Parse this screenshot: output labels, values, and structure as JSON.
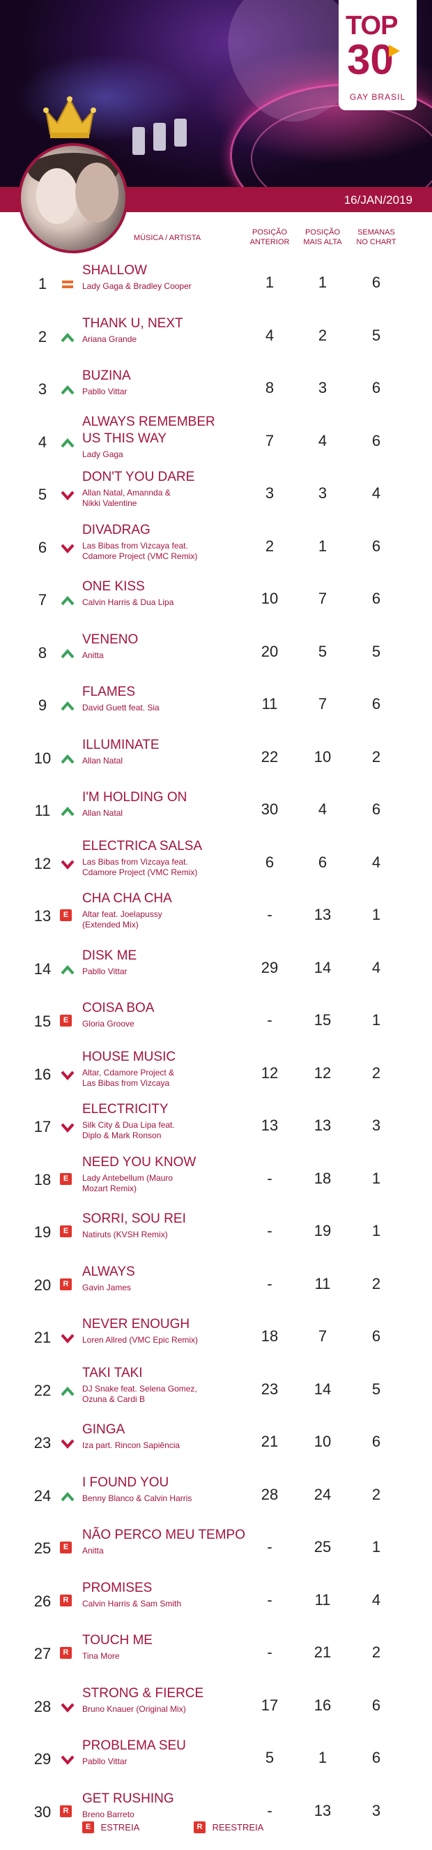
{
  "logo": {
    "top": "TOP",
    "number": "30",
    "subtitle": "GAY BRASIL"
  },
  "date": "16/JAN/2019",
  "headers": {
    "music": "MÚSICA / ARTISTA",
    "prev": [
      "POSIÇÃO",
      "ANTERIOR"
    ],
    "peak": [
      "POSIÇÃO",
      "MAIS ALTA"
    ],
    "weeks": [
      "SEMANAS",
      "NO CHART"
    ]
  },
  "colors": {
    "accent": "#a3133f",
    "up": "#3aa25b",
    "down": "#c0163f",
    "badge": "#e0342d"
  },
  "rows": [
    {
      "rank": "1",
      "trend": "same",
      "title": [
        "SHALLOW"
      ],
      "artist": [
        "Lady Gaga & Bradley Cooper"
      ],
      "prev": "1",
      "peak": "1",
      "weeks": "6"
    },
    {
      "rank": "2",
      "trend": "up",
      "title": [
        "THANK U, NEXT"
      ],
      "artist": [
        "Ariana Grande"
      ],
      "prev": "4",
      "peak": "2",
      "weeks": "5"
    },
    {
      "rank": "3",
      "trend": "up",
      "title": [
        "BUZINA"
      ],
      "artist": [
        "Pabllo Vittar"
      ],
      "prev": "8",
      "peak": "3",
      "weeks": "6"
    },
    {
      "rank": "4",
      "trend": "up",
      "title": [
        "ALWAYS REMEMBER",
        "US THIS WAY"
      ],
      "artist": [
        "Lady Gaga"
      ],
      "prev": "7",
      "peak": "4",
      "weeks": "6"
    },
    {
      "rank": "5",
      "trend": "down",
      "title": [
        "DON'T YOU DARE"
      ],
      "artist": [
        "Allan Natal, Amannda &",
        "Nikki Valentine"
      ],
      "prev": "3",
      "peak": "3",
      "weeks": "4"
    },
    {
      "rank": "6",
      "trend": "down",
      "title": [
        "DIVADRAG"
      ],
      "artist": [
        "Las Bibas from Vizcaya feat.",
        "Cdamore Project (VMC Remix)"
      ],
      "prev": "2",
      "peak": "1",
      "weeks": "6"
    },
    {
      "rank": "7",
      "trend": "up",
      "title": [
        "ONE KISS"
      ],
      "artist": [
        "Calvin Harris & Dua Lipa"
      ],
      "prev": "10",
      "peak": "7",
      "weeks": "6"
    },
    {
      "rank": "8",
      "trend": "up",
      "title": [
        "VENENO"
      ],
      "artist": [
        "Anitta"
      ],
      "prev": "20",
      "peak": "5",
      "weeks": "5"
    },
    {
      "rank": "9",
      "trend": "up",
      "title": [
        "FLAMES"
      ],
      "artist": [
        "David Guett feat. Sia"
      ],
      "prev": "11",
      "peak": "7",
      "weeks": "6"
    },
    {
      "rank": "10",
      "trend": "up",
      "title": [
        "ILLUMINATE"
      ],
      "artist": [
        "Allan Natal"
      ],
      "prev": "22",
      "peak": "10",
      "weeks": "2"
    },
    {
      "rank": "11",
      "trend": "up",
      "title": [
        "I'M HOLDING ON"
      ],
      "artist": [
        "Allan Natal"
      ],
      "prev": "30",
      "peak": "4",
      "weeks": "6"
    },
    {
      "rank": "12",
      "trend": "down",
      "title": [
        "ELECTRICA SALSA"
      ],
      "artist": [
        "Las Bibas from Vizcaya feat.",
        "Cdamore Project (VMC Remix)"
      ],
      "prev": "6",
      "peak": "6",
      "weeks": "4"
    },
    {
      "rank": "13",
      "trend": "E",
      "title": [
        "CHA CHA CHA"
      ],
      "artist": [
        "Altar feat. Joelapussy",
        "(Extended Mix)"
      ],
      "prev": "-",
      "peak": "13",
      "weeks": "1"
    },
    {
      "rank": "14",
      "trend": "up",
      "title": [
        "DISK ME"
      ],
      "artist": [
        "Pabllo Vittar"
      ],
      "prev": "29",
      "peak": "14",
      "weeks": "4"
    },
    {
      "rank": "15",
      "trend": "E",
      "title": [
        "COISA BOA"
      ],
      "artist": [
        "Gloria Groove"
      ],
      "prev": "-",
      "peak": "15",
      "weeks": "1"
    },
    {
      "rank": "16",
      "trend": "down",
      "title": [
        "HOUSE MUSIC"
      ],
      "artist": [
        "Altar, Cdamore Project &",
        "Las Bibas from Vizcaya"
      ],
      "prev": "12",
      "peak": "12",
      "weeks": "2"
    },
    {
      "rank": "17",
      "trend": "down",
      "title": [
        "ELECTRICITY"
      ],
      "artist": [
        "Silk City & Dua Lipa feat.",
        "Diplo & Mark Ronson"
      ],
      "prev": "13",
      "peak": "13",
      "weeks": "3"
    },
    {
      "rank": "18",
      "trend": "E",
      "title": [
        "NEED YOU KNOW"
      ],
      "artist": [
        "Lady Antebellum (Mauro",
        "Mozart Remix)"
      ],
      "prev": "-",
      "peak": "18",
      "weeks": "1"
    },
    {
      "rank": "19",
      "trend": "E",
      "title": [
        "SORRI, SOU REI"
      ],
      "artist": [
        "Natiruts (KVSH Remix)"
      ],
      "prev": "-",
      "peak": "19",
      "weeks": "1"
    },
    {
      "rank": "20",
      "trend": "R",
      "title": [
        "ALWAYS"
      ],
      "artist": [
        "Gavin James"
      ],
      "prev": "-",
      "peak": "11",
      "weeks": "2"
    },
    {
      "rank": "21",
      "trend": "down",
      "title": [
        "NEVER ENOUGH"
      ],
      "artist": [
        "Loren Allred (VMC Epic Remix)"
      ],
      "prev": "18",
      "peak": "7",
      "weeks": "6"
    },
    {
      "rank": "22",
      "trend": "up",
      "title": [
        "TAKI TAKI"
      ],
      "artist": [
        "DJ Snake feat. Selena Gomez,",
        "Ozuna & Cardi B"
      ],
      "prev": "23",
      "peak": "14",
      "weeks": "5"
    },
    {
      "rank": "23",
      "trend": "down",
      "title": [
        "GINGA"
      ],
      "artist": [
        "Iza part. Rincon Sapiência"
      ],
      "prev": "21",
      "peak": "10",
      "weeks": "6"
    },
    {
      "rank": "24",
      "trend": "up",
      "title": [
        "I FOUND YOU"
      ],
      "artist": [
        "Benny Blanco & Calvin Harris"
      ],
      "prev": "28",
      "peak": "24",
      "weeks": "2"
    },
    {
      "rank": "25",
      "trend": "E",
      "title": [
        "NÃO PERCO MEU TEMPO"
      ],
      "artist": [
        "Anitta"
      ],
      "prev": "-",
      "peak": "25",
      "weeks": "1"
    },
    {
      "rank": "26",
      "trend": "R",
      "title": [
        "PROMISES"
      ],
      "artist": [
        "Calvin Harris & Sam Smith"
      ],
      "prev": "-",
      "peak": "11",
      "weeks": "4"
    },
    {
      "rank": "27",
      "trend": "R",
      "title": [
        "TOUCH ME"
      ],
      "artist": [
        "Tina More"
      ],
      "prev": "-",
      "peak": "21",
      "weeks": "2"
    },
    {
      "rank": "28",
      "trend": "down",
      "title": [
        "STRONG & FIERCE"
      ],
      "artist": [
        "Bruno Knauer (Original Mix)"
      ],
      "prev": "17",
      "peak": "16",
      "weeks": "6"
    },
    {
      "rank": "29",
      "trend": "down",
      "title": [
        "PROBLEMA SEU"
      ],
      "artist": [
        "Pabllo Vittar"
      ],
      "prev": "5",
      "peak": "1",
      "weeks": "6"
    },
    {
      "rank": "30",
      "trend": "R",
      "title": [
        "GET RUSHING"
      ],
      "artist": [
        "Breno Barreto"
      ],
      "prev": "-",
      "peak": "13",
      "weeks": "3"
    }
  ],
  "legend": {
    "new_badge": "E",
    "new_label": "ESTREIA",
    "re_badge": "R",
    "re_label": "REESTREIA"
  }
}
